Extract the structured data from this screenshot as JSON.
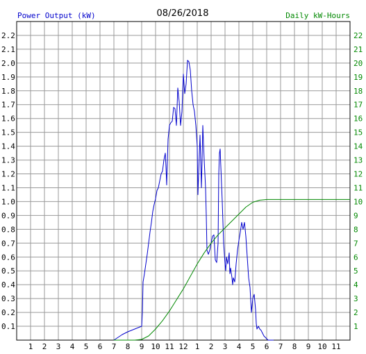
{
  "chart_data": {
    "type": "line",
    "title": "08/26/2018",
    "ylabel_left": "Power Output (kW)",
    "ylabel_right": "Daily kW-Hours",
    "x_tick_labels": [
      "1",
      "2",
      "3",
      "4",
      "5",
      "6",
      "7",
      "8",
      "9",
      "10",
      "11",
      "12",
      "1",
      "2",
      "3",
      "4",
      "5",
      "6",
      "7",
      "8",
      "9",
      "10",
      "11"
    ],
    "xlim": [
      0,
      24
    ],
    "ylim_left": [
      0,
      2.3
    ],
    "ylim_right": [
      0,
      23
    ],
    "y_left_ticks": [
      "0.1",
      "0.2",
      "0.3",
      "0.4",
      "0.5",
      "0.6",
      "0.7",
      "0.8",
      "0.9",
      "1.0",
      "1.1",
      "1.2",
      "1.3",
      "1.4",
      "1.5",
      "1.6",
      "1.7",
      "1.8",
      "1.9",
      "2.0",
      "2.1",
      "2.2"
    ],
    "y_right_ticks": [
      "1",
      "2",
      "3",
      "4",
      "5",
      "6",
      "7",
      "8",
      "9",
      "10",
      "11",
      "12",
      "13",
      "14",
      "15",
      "16",
      "17",
      "18",
      "19",
      "20",
      "21",
      "22"
    ],
    "grid": true,
    "colors": {
      "power": "#0000cc",
      "energy": "#008800",
      "left_axis_text": "#0000cc",
      "right_axis_text": "#008800",
      "grid": "#999999"
    },
    "series": [
      {
        "axis": "left",
        "points": [
          [
            7.0,
            0.0
          ],
          [
            7.3,
            0.02
          ],
          [
            7.6,
            0.04
          ],
          [
            8.0,
            0.06
          ],
          [
            8.5,
            0.08
          ],
          [
            9.0,
            0.1
          ],
          [
            9.05,
            0.2
          ],
          [
            9.1,
            0.42
          ],
          [
            9.2,
            0.48
          ],
          [
            9.3,
            0.55
          ],
          [
            9.4,
            0.62
          ],
          [
            9.5,
            0.7
          ],
          [
            9.6,
            0.78
          ],
          [
            9.7,
            0.85
          ],
          [
            9.8,
            0.93
          ],
          [
            9.9,
            0.98
          ],
          [
            10.0,
            1.02
          ],
          [
            10.1,
            1.08
          ],
          [
            10.2,
            1.1
          ],
          [
            10.3,
            1.15
          ],
          [
            10.4,
            1.2
          ],
          [
            10.5,
            1.22
          ],
          [
            10.6,
            1.3
          ],
          [
            10.7,
            1.35
          ],
          [
            10.75,
            1.25
          ],
          [
            10.8,
            1.12
          ],
          [
            10.9,
            1.45
          ],
          [
            11.0,
            1.55
          ],
          [
            11.1,
            1.57
          ],
          [
            11.2,
            1.58
          ],
          [
            11.3,
            1.68
          ],
          [
            11.4,
            1.67
          ],
          [
            11.5,
            1.55
          ],
          [
            11.6,
            1.82
          ],
          [
            11.7,
            1.72
          ],
          [
            11.8,
            1.55
          ],
          [
            11.9,
            1.65
          ],
          [
            12.0,
            1.92
          ],
          [
            12.1,
            1.78
          ],
          [
            12.2,
            1.85
          ],
          [
            12.3,
            2.02
          ],
          [
            12.4,
            2.01
          ],
          [
            12.5,
            1.95
          ],
          [
            12.6,
            1.8
          ],
          [
            12.7,
            1.7
          ],
          [
            12.8,
            1.65
          ],
          [
            12.9,
            1.55
          ],
          [
            13.0,
            1.4
          ],
          [
            13.05,
            1.05
          ],
          [
            13.1,
            1.2
          ],
          [
            13.2,
            1.48
          ],
          [
            13.25,
            1.3
          ],
          [
            13.3,
            1.1
          ],
          [
            13.35,
            1.3
          ],
          [
            13.4,
            1.55
          ],
          [
            13.5,
            1.3
          ],
          [
            13.6,
            1.1
          ],
          [
            13.65,
            0.9
          ],
          [
            13.7,
            0.65
          ],
          [
            13.8,
            0.62
          ],
          [
            13.9,
            0.65
          ],
          [
            14.0,
            0.7
          ],
          [
            14.1,
            0.75
          ],
          [
            14.2,
            0.76
          ],
          [
            14.3,
            0.58
          ],
          [
            14.4,
            0.56
          ],
          [
            14.5,
            0.7
          ],
          [
            14.55,
            1.2
          ],
          [
            14.6,
            1.35
          ],
          [
            14.65,
            1.38
          ],
          [
            14.7,
            1.25
          ],
          [
            14.8,
            1.0
          ],
          [
            14.9,
            0.7
          ],
          [
            15.0,
            0.55
          ],
          [
            15.05,
            0.5
          ],
          [
            15.1,
            0.6
          ],
          [
            15.2,
            0.55
          ],
          [
            15.3,
            0.63
          ],
          [
            15.35,
            0.48
          ],
          [
            15.4,
            0.52
          ],
          [
            15.5,
            0.45
          ],
          [
            15.55,
            0.4
          ],
          [
            15.6,
            0.45
          ],
          [
            15.7,
            0.42
          ],
          [
            15.8,
            0.55
          ],
          [
            15.9,
            0.65
          ],
          [
            16.0,
            0.72
          ],
          [
            16.1,
            0.78
          ],
          [
            16.2,
            0.85
          ],
          [
            16.3,
            0.8
          ],
          [
            16.4,
            0.85
          ],
          [
            16.5,
            0.75
          ],
          [
            16.6,
            0.6
          ],
          [
            16.7,
            0.45
          ],
          [
            16.8,
            0.38
          ],
          [
            16.9,
            0.2
          ],
          [
            17.0,
            0.3
          ],
          [
            17.1,
            0.33
          ],
          [
            17.2,
            0.22
          ],
          [
            17.25,
            0.12
          ],
          [
            17.3,
            0.08
          ],
          [
            17.4,
            0.1
          ],
          [
            17.5,
            0.08
          ],
          [
            17.6,
            0.07
          ],
          [
            17.7,
            0.05
          ],
          [
            17.8,
            0.03
          ],
          [
            17.9,
            0.02
          ],
          [
            18.0,
            0.01
          ],
          [
            18.1,
            0.0
          ],
          [
            18.5,
            0.0
          ]
        ]
      },
      {
        "axis": "right",
        "points": [
          [
            7.0,
            0.0
          ],
          [
            8.5,
            0.0
          ],
          [
            9.0,
            0.05
          ],
          [
            9.5,
            0.3
          ],
          [
            10.0,
            0.8
          ],
          [
            10.5,
            1.4
          ],
          [
            11.0,
            2.1
          ],
          [
            11.5,
            2.9
          ],
          [
            12.0,
            3.7
          ],
          [
            12.5,
            4.6
          ],
          [
            13.0,
            5.5
          ],
          [
            13.5,
            6.3
          ],
          [
            14.0,
            7.0
          ],
          [
            14.5,
            7.6
          ],
          [
            15.0,
            8.1
          ],
          [
            15.5,
            8.6
          ],
          [
            16.0,
            9.1
          ],
          [
            16.5,
            9.6
          ],
          [
            17.0,
            9.95
          ],
          [
            17.5,
            10.1
          ],
          [
            18.0,
            10.15
          ],
          [
            19.0,
            10.15
          ],
          [
            24.0,
            10.15
          ]
        ]
      }
    ]
  }
}
